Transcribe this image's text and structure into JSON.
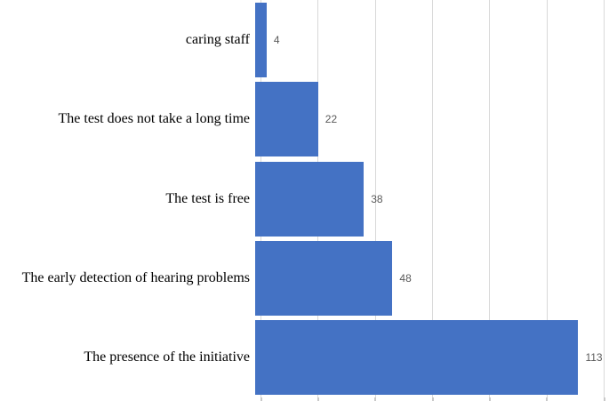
{
  "chart_data": {
    "type": "bar",
    "orientation": "horizontal",
    "title": "",
    "xlabel": "",
    "ylabel": "",
    "categories": [
      "caring staff",
      "The test does not take a long time",
      "The test is free",
      "The early detection of hearing problems",
      "The presence of the initiative"
    ],
    "values": [
      4,
      22,
      38,
      48,
      113
    ],
    "xlim": [
      0,
      120
    ],
    "x_ticks": [
      0,
      20,
      40,
      60,
      80,
      100,
      120
    ],
    "grid": true,
    "legend": "none",
    "data_labels": true,
    "colors": {
      "bar": "#4472C4",
      "gridline": "#D9D9D9",
      "tick": "#C9C9C9",
      "value_label": "#595959",
      "category_label": "#000000",
      "background": "#FFFFFF"
    }
  }
}
